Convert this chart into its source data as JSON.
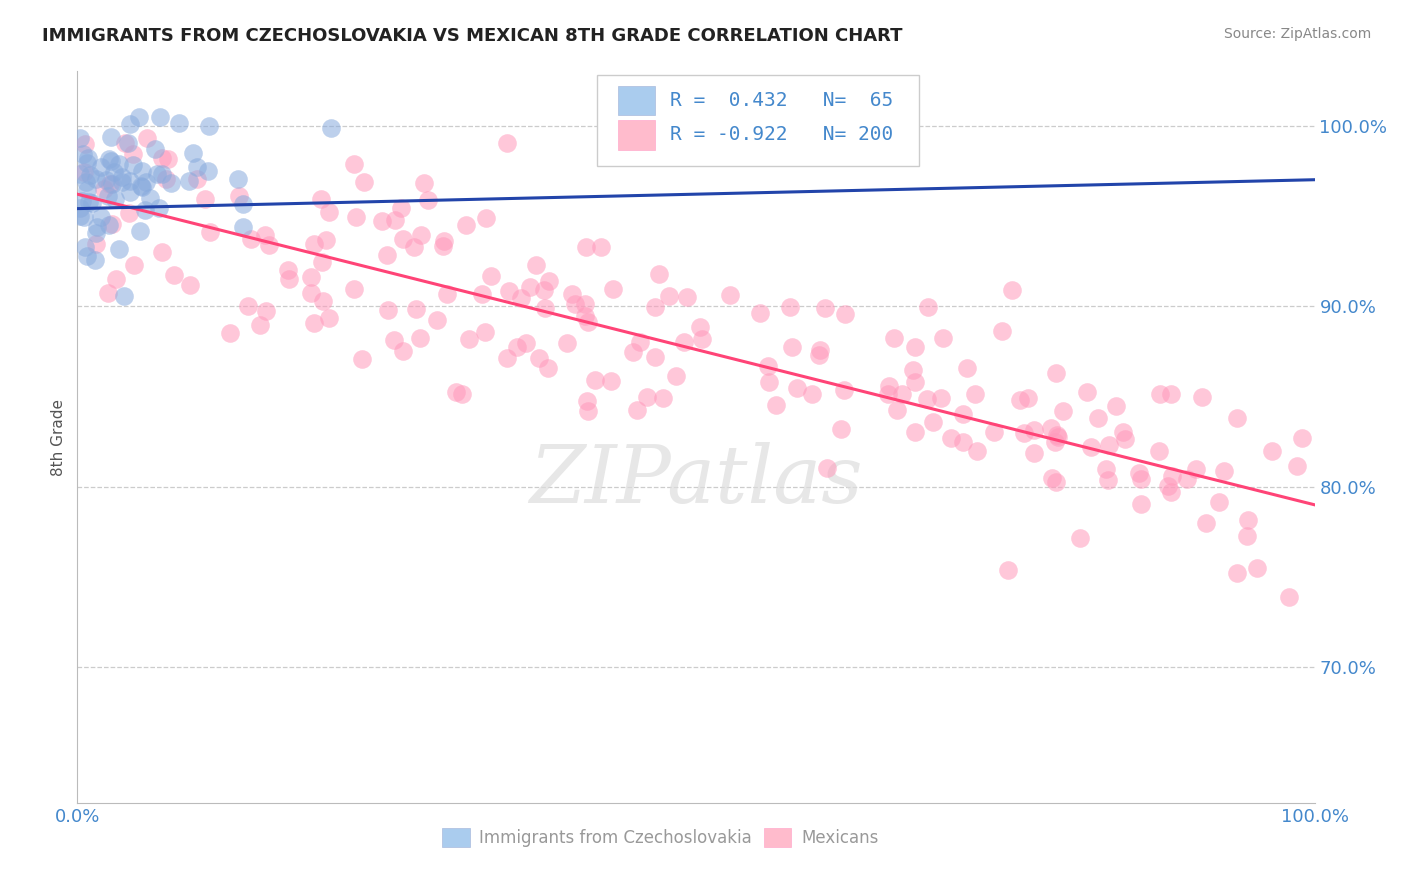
{
  "title": "IMMIGRANTS FROM CZECHOSLOVAKIA VS MEXICAN 8TH GRADE CORRELATION CHART",
  "source": "Source: ZipAtlas.com",
  "ylabel": "8th Grade",
  "y_tick_labels": [
    "70.0%",
    "80.0%",
    "90.0%",
    "100.0%"
  ],
  "y_tick_values": [
    0.7,
    0.8,
    0.9,
    1.0
  ],
  "x_range": [
    0.0,
    1.0
  ],
  "y_range": [
    0.625,
    1.03
  ],
  "blue_r": 0.432,
  "blue_n": 65,
  "pink_r": -0.922,
  "pink_n": 200,
  "blue_scatter_color": "#88AADD",
  "pink_scatter_color": "#FF99BB",
  "blue_line_color": "#2244AA",
  "pink_line_color": "#FF4477",
  "title_color": "#222222",
  "label_color": "#4488CC",
  "grid_color": "#CCCCCC",
  "watermark": "ZIPatlas",
  "legend_label1": "Immigrants from Czechoslovakia",
  "legend_label2": "Mexicans",
  "legend_sq1": "#AACCEE",
  "legend_sq2": "#FFBBCC",
  "source_color": "#888888",
  "ylabel_color": "#555555",
  "xtick_left": "0.0%",
  "xtick_right": "100.0%",
  "pink_line_y0": 0.962,
  "pink_line_y1": 0.79,
  "blue_line_y0": 0.954,
  "blue_line_y1": 0.97
}
